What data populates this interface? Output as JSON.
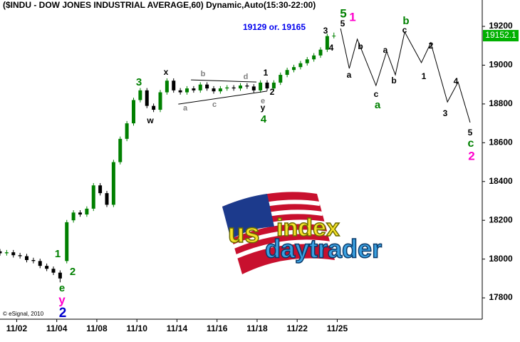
{
  "chart_data": {
    "type": "candlestick",
    "title": "($INDU - DOW JONES INDUSTRIAL AVERAGE,60) Dynamic,Auto(15:30-22:00)",
    "credit": "© eSignal, 2010",
    "target_note": "19129 or. 19165",
    "last_price": 19152.1,
    "up_color": "#008000",
    "down_color": "#000000",
    "price_label_color": "#00b000",
    "ylim": [
      17690,
      19336
    ],
    "yticks": [
      17800,
      18000,
      18200,
      18400,
      18600,
      18800,
      19000,
      19200
    ],
    "xlim": [
      0,
      72
    ],
    "xticks": [
      {
        "value": 2.5,
        "label": "11/02"
      },
      {
        "value": 8.5,
        "label": "11/04"
      },
      {
        "value": 14.5,
        "label": "11/08"
      },
      {
        "value": 20.5,
        "label": "11/10"
      },
      {
        "value": 26.5,
        "label": "11/14"
      },
      {
        "value": 32.5,
        "label": "11/16"
      },
      {
        "value": 38.5,
        "label": "11/18"
      },
      {
        "value": 44.5,
        "label": "11/22"
      },
      {
        "value": 50.5,
        "label": "11/25"
      }
    ],
    "x": [
      0,
      1,
      2,
      3,
      4,
      5,
      6,
      7,
      8,
      9,
      10,
      11,
      12,
      13,
      14,
      15,
      16,
      17,
      18,
      19,
      20,
      21,
      22,
      23,
      24,
      25,
      26,
      27,
      28,
      29,
      30,
      31,
      32,
      33,
      34,
      35,
      36,
      37,
      38,
      39,
      40,
      41,
      42,
      43,
      44,
      45,
      46,
      47,
      48,
      49,
      50
    ],
    "candles": [
      [
        18040,
        18052,
        18018,
        18030
      ],
      [
        18030,
        18047,
        18018,
        18035
      ],
      [
        18035,
        18047,
        18008,
        18020
      ],
      [
        18020,
        18032,
        18003,
        18015
      ],
      [
        18015,
        18027,
        17983,
        17995
      ],
      [
        17995,
        18007,
        17978,
        17990
      ],
      [
        17990,
        18002,
        17953,
        17965
      ],
      [
        17965,
        17977,
        17938,
        17950
      ],
      [
        17950,
        17962,
        17918,
        17930
      ],
      [
        17930,
        17942,
        17880,
        17900
      ],
      [
        17990,
        18202,
        17978,
        18190
      ],
      [
        18200,
        18252,
        18188,
        18240
      ],
      [
        18240,
        18252,
        18218,
        18230
      ],
      [
        18230,
        18272,
        18218,
        18260
      ],
      [
        18260,
        18392,
        18248,
        18380
      ],
      [
        18380,
        18392,
        18328,
        18340
      ],
      [
        18340,
        18352,
        18268,
        18280
      ],
      [
        18280,
        18512,
        18268,
        18500
      ],
      [
        18500,
        18632,
        18488,
        18620
      ],
      [
        18620,
        18712,
        18608,
        18700
      ],
      [
        18700,
        18832,
        18688,
        18820
      ],
      [
        18820,
        18882,
        18808,
        18870
      ],
      [
        18870,
        18882,
        18778,
        18790
      ],
      [
        18790,
        18802,
        18758,
        18770
      ],
      [
        18770,
        18872,
        18758,
        18860
      ],
      [
        18860,
        18932,
        18848,
        18920
      ],
      [
        18920,
        18932,
        18858,
        18870
      ],
      [
        18870,
        18882,
        18848,
        18860
      ],
      [
        18860,
        18892,
        18848,
        18880
      ],
      [
        18880,
        18892,
        18858,
        18870
      ],
      [
        18870,
        18912,
        18858,
        18900
      ],
      [
        18900,
        18912,
        18868,
        18880
      ],
      [
        18880,
        18892,
        18853,
        18865
      ],
      [
        18865,
        18892,
        18853,
        18880
      ],
      [
        18880,
        18897,
        18868,
        18885
      ],
      [
        18885,
        18897,
        18868,
        18880
      ],
      [
        18880,
        18907,
        18868,
        18895
      ],
      [
        18895,
        18907,
        18878,
        18890
      ],
      [
        18890,
        18902,
        18858,
        18870
      ],
      [
        18870,
        18922,
        18858,
        18910
      ],
      [
        18910,
        18922,
        18868,
        18880
      ],
      [
        18880,
        18922,
        18868,
        18910
      ],
      [
        18910,
        18962,
        18898,
        18950
      ],
      [
        18950,
        18987,
        18938,
        18975
      ],
      [
        18975,
        19002,
        18963,
        18990
      ],
      [
        18990,
        19022,
        18978,
        19010
      ],
      [
        19010,
        19042,
        18998,
        19030
      ],
      [
        19030,
        19062,
        19018,
        19050
      ],
      [
        19050,
        19092,
        19038,
        19080
      ],
      [
        19080,
        19162,
        19068,
        19150
      ],
      [
        19150,
        19168,
        19138,
        19152
      ]
    ],
    "projection": {
      "x": [
        51,
        52.3,
        53.5,
        56.3,
        57.9,
        59.2,
        60.6,
        63.1,
        64.5,
        67,
        68.6,
        70.4
      ],
      "values": [
        19189,
        18983,
        19134,
        18895,
        19071,
        18950,
        19171,
        19013,
        19115,
        18810,
        18913,
        18704
      ],
      "color": "#000000"
    },
    "trendlines": [
      {
        "x": [
          28.6,
          38.4
        ],
        "values": [
          18924,
          18913
        ],
        "color": "#000000"
      },
      {
        "x": [
          26.7,
          40
        ],
        "values": [
          18799,
          18866
        ],
        "color": "#000000"
      }
    ],
    "annotations": [
      {
        "text": "5",
        "color": "#008000"
      },
      {
        "text": "1",
        "color": "#ff00cc"
      },
      {
        "text": "3",
        "color": "#000000"
      },
      {
        "text": "5",
        "color": "#000000"
      },
      {
        "text": "4",
        "color": "#000000"
      },
      {
        "text": "b",
        "color": "#008000"
      },
      {
        "text": "c",
        "color": "#000000"
      },
      {
        "text": "a",
        "color": "#000000"
      },
      {
        "text": "b",
        "color": "#000000"
      },
      {
        "text": "a",
        "color": "#000000"
      },
      {
        "text": "c",
        "color": "#000000"
      },
      {
        "text": "a",
        "color": "#008000"
      },
      {
        "text": "b",
        "color": "#000000"
      },
      {
        "text": "1",
        "color": "#000000"
      },
      {
        "text": "2",
        "color": "#000000"
      },
      {
        "text": "3",
        "color": "#000000"
      },
      {
        "text": "4",
        "color": "#000000"
      },
      {
        "text": "5",
        "color": "#000000"
      },
      {
        "text": "c",
        "color": "#008000"
      },
      {
        "text": "2",
        "color": "#ff00cc"
      },
      {
        "text": "3",
        "color": "#008000"
      },
      {
        "text": "x",
        "color": "#000000"
      },
      {
        "text": "w",
        "color": "#000000"
      },
      {
        "text": "b",
        "color": "#808080"
      },
      {
        "text": "d",
        "color": "#808080"
      },
      {
        "text": "a",
        "color": "#808080"
      },
      {
        "text": "c",
        "color": "#808080"
      },
      {
        "text": "e",
        "color": "#808080"
      },
      {
        "text": "1",
        "color": "#000000"
      },
      {
        "text": "2",
        "color": "#000000"
      },
      {
        "text": "y",
        "color": "#000000"
      },
      {
        "text": "4",
        "color": "#008000"
      },
      {
        "text": "1",
        "color": "#008000"
      },
      {
        "text": "2",
        "color": "#008000"
      },
      {
        "text": "e",
        "color": "#008000"
      },
      {
        "text": "y",
        "color": "#ff00cc"
      },
      {
        "text": "2",
        "color": "#0000cc"
      }
    ],
    "logo": {
      "line1a": "us",
      "line1b": "index",
      "line2": "daytrader"
    }
  }
}
